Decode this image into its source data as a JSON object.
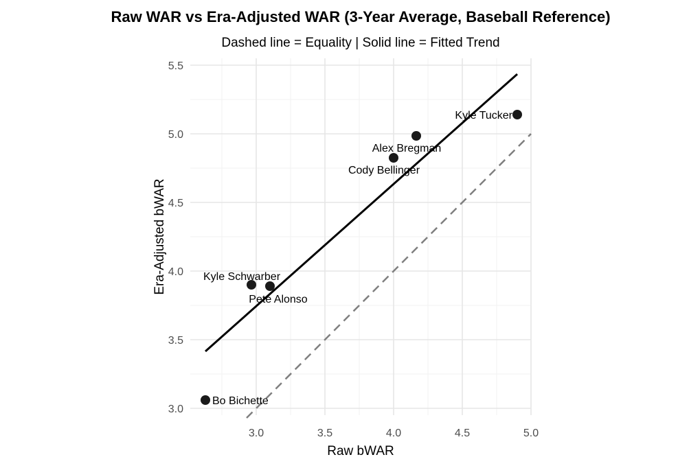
{
  "chart_data": {
    "type": "scatter",
    "title": "Raw WAR vs Era-Adjusted WAR (3-Year Average, Baseball Reference)",
    "subtitle": "Dashed line = Equality | Solid line = Fitted Trend",
    "xlabel": "Raw bWAR",
    "ylabel": "Era-Adjusted bWAR",
    "xlim": [
      2.52,
      5.0
    ],
    "ylim": [
      2.95,
      5.55
    ],
    "xticks": [
      "3.0",
      "3.5",
      "4.0",
      "4.5",
      "5.0"
    ],
    "xtick_values": [
      3.0,
      3.5,
      4.0,
      4.5,
      5.0
    ],
    "yticks": [
      "3.0",
      "3.5",
      "4.0",
      "4.5",
      "5.0",
      "5.5"
    ],
    "ytick_values": [
      3.0,
      3.5,
      4.0,
      4.5,
      5.0,
      5.5
    ],
    "grid": true,
    "points": [
      {
        "name": "Bo Bichette",
        "x": 2.63,
        "y": 3.06,
        "label_pos": "right"
      },
      {
        "name": "Kyle Schwarber",
        "x": 2.965,
        "y": 3.9,
        "label_pos": "above-left"
      },
      {
        "name": "Pete Alonso",
        "x": 3.1,
        "y": 3.89,
        "label_pos": "below"
      },
      {
        "name": "Cody Bellinger",
        "x": 4.0,
        "y": 4.825,
        "label_pos": "below-left"
      },
      {
        "name": "Alex Bregman",
        "x": 4.165,
        "y": 4.985,
        "label_pos": "below-left"
      },
      {
        "name": "Kyle Tucker",
        "x": 4.9,
        "y": 5.14,
        "label_pos": "left"
      }
    ],
    "fit_line": {
      "x": [
        2.63,
        4.9
      ],
      "y": [
        3.415,
        5.435
      ]
    },
    "equality_line": {
      "slope": 1,
      "intercept": 0
    }
  }
}
